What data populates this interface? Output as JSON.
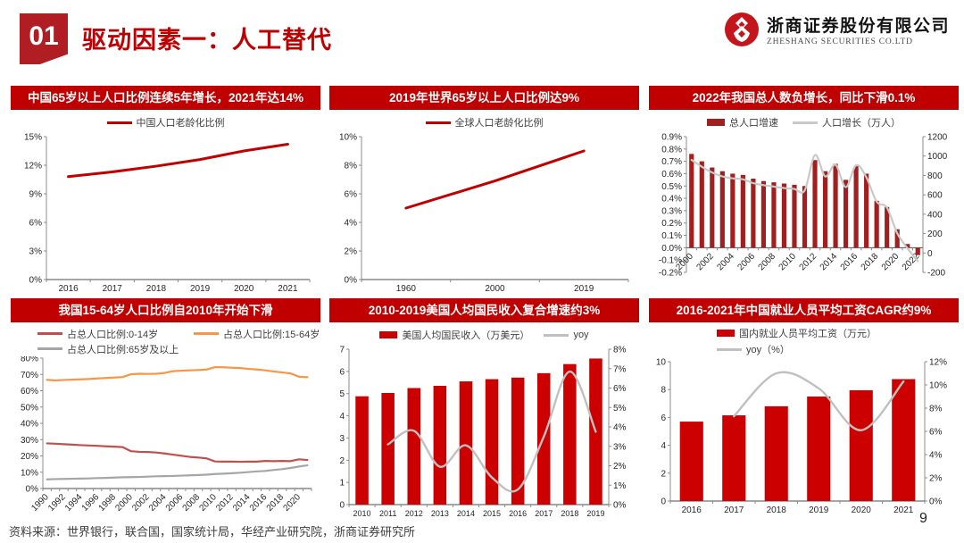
{
  "header": {
    "badge": "01",
    "title": "驱动因素一：人工替代"
  },
  "logo": {
    "cn": "浙商证券股份有限公司",
    "en": "ZHESHANG SECURITIES CO.LTD",
    "icon": "zheshang-knot-icon",
    "brand_color": "#c4151c"
  },
  "footer": {
    "source": "资料来源：世界银行，联合国，国家统计局，华经产业研究院，浙商证券研究所",
    "page": "9"
  },
  "colors": {
    "accent_red": "#c00000",
    "badge_red": "#b01e24",
    "bar_bright_red": "#cc0000",
    "bar_dark_red": "#a21f1f",
    "gray_line": "#c0c0c0",
    "orange_line": "#f79646",
    "muted_red_line": "#c0504d",
    "gray_series": "#a6a6a6"
  },
  "chart_data": [
    {
      "type": "line",
      "title": "中国65岁以上人口比例连续5年增长，2021年达14%",
      "categories": [
        "2016",
        "2017",
        "2018",
        "2019",
        "2020",
        "2021"
      ],
      "series": [
        {
          "name": "中国人口老龄化比例",
          "type": "line",
          "axis": "left",
          "color": "#c00000",
          "values": [
            10.8,
            11.3,
            11.9,
            12.6,
            13.5,
            14.2
          ]
        }
      ],
      "axes": {
        "left": {
          "min": 0,
          "max": 15,
          "step": 3,
          "suffix": "%"
        }
      },
      "legend_position": "top",
      "grid": false
    },
    {
      "type": "line",
      "title": "2019年世界65岁以上人口比例达9%",
      "categories": [
        "1960",
        "2000",
        "2019"
      ],
      "series": [
        {
          "name": "全球人口老龄化比例",
          "type": "line",
          "axis": "left",
          "color": "#c00000",
          "values": [
            5.0,
            6.9,
            9.0
          ]
        }
      ],
      "axes": {
        "left": {
          "min": 0,
          "max": 10,
          "step": 2,
          "suffix": "%"
        }
      },
      "legend_position": "top",
      "grid": false
    },
    {
      "type": "bar-line",
      "title": "2022年我国总人数负增长，同比下滑0.1%",
      "categories": [
        "2000",
        "2001",
        "2002",
        "2003",
        "2004",
        "2005",
        "2006",
        "2007",
        "2008",
        "2009",
        "2010",
        "2011",
        "2012",
        "2013",
        "2014",
        "2015",
        "2016",
        "2017",
        "2018",
        "2019",
        "2020",
        "2021",
        "2022"
      ],
      "series": [
        {
          "name": "总人口增速",
          "type": "bar",
          "axis": "left",
          "color": "#a21f1f",
          "values": [
            0.76,
            0.7,
            0.65,
            0.62,
            0.6,
            0.59,
            0.56,
            0.54,
            0.53,
            0.52,
            0.51,
            0.5,
            0.71,
            0.62,
            0.68,
            0.55,
            0.66,
            0.6,
            0.38,
            0.33,
            0.15,
            0.03,
            -0.06
          ]
        },
        {
          "name": "人口增长（万人）",
          "type": "line",
          "axis": "right",
          "color": "#c9c9c9",
          "smooth": true,
          "values": [
            960,
            890,
            830,
            790,
            770,
            760,
            720,
            700,
            685,
            670,
            660,
            645,
            1010,
            790,
            910,
            680,
            905,
            780,
            530,
            468,
            204,
            48,
            -85
          ]
        }
      ],
      "axes": {
        "left": {
          "min": -0.2,
          "max": 0.9,
          "step": 0.1,
          "suffix": "%",
          "decimals": 1
        },
        "right": {
          "min": -200,
          "max": 1200,
          "step": 200,
          "suffix": ""
        }
      },
      "legend_position": "top",
      "grid": false
    },
    {
      "type": "line",
      "title": "我国15-64岁人口比例自2010年开始下滑",
      "categories": [
        "1990",
        "1991",
        "1992",
        "1993",
        "1994",
        "1995",
        "1996",
        "1997",
        "1998",
        "1999",
        "2000",
        "2001",
        "2002",
        "2003",
        "2004",
        "2005",
        "2006",
        "2007",
        "2008",
        "2009",
        "2010",
        "2011",
        "2012",
        "2013",
        "2014",
        "2015",
        "2016",
        "2017",
        "2018",
        "2019",
        "2020",
        "2021"
      ],
      "series": [
        {
          "name": "占总人口比例:0-14岁",
          "type": "line",
          "axis": "left",
          "color": "#c0504d",
          "values": [
            27.7,
            27.5,
            27.2,
            26.9,
            26.6,
            26.4,
            26.2,
            25.9,
            25.7,
            25.4,
            22.9,
            22.5,
            22.4,
            22.1,
            21.5,
            20.8,
            20.1,
            19.4,
            19.0,
            18.5,
            16.6,
            16.5,
            16.5,
            16.4,
            16.5,
            16.5,
            16.9,
            16.8,
            16.9,
            16.8,
            17.9,
            17.5
          ]
        },
        {
          "name": "占总人口比例:15-64岁",
          "type": "line",
          "axis": "left",
          "color": "#f79646",
          "values": [
            66.7,
            66.3,
            66.6,
            66.8,
            67.0,
            67.2,
            67.5,
            67.8,
            68.1,
            68.4,
            70.1,
            70.4,
            70.3,
            70.4,
            70.9,
            72.0,
            72.3,
            72.5,
            72.7,
            73.0,
            74.5,
            74.4,
            74.1,
            73.9,
            73.4,
            73.0,
            72.5,
            71.8,
            71.2,
            70.6,
            68.6,
            68.3
          ]
        },
        {
          "name": "占总人口比例:65岁及以上",
          "type": "line",
          "axis": "left",
          "color": "#a6a6a6",
          "values": [
            5.6,
            5.8,
            5.9,
            6.0,
            6.1,
            6.2,
            6.4,
            6.5,
            6.7,
            6.9,
            7.0,
            7.1,
            7.3,
            7.5,
            7.6,
            7.7,
            7.9,
            8.1,
            8.3,
            8.5,
            8.9,
            9.1,
            9.4,
            9.7,
            10.1,
            10.5,
            10.8,
            11.4,
            11.9,
            12.6,
            13.5,
            14.2
          ]
        }
      ],
      "axes": {
        "left": {
          "min": 0,
          "max": 80,
          "step": 10,
          "suffix": "%"
        }
      },
      "legend_position": "top",
      "grid": false
    },
    {
      "type": "bar-line",
      "title": "2010-2019美国人均国民收入复合增速约3%",
      "categories": [
        "2010",
        "2011",
        "2012",
        "2013",
        "2014",
        "2015",
        "2016",
        "2017",
        "2018",
        "2019"
      ],
      "series": [
        {
          "name": "美国人均国民收入（万美元）",
          "type": "bar",
          "axis": "left",
          "color": "#cc0000",
          "values": [
            4.88,
            5.03,
            5.25,
            5.35,
            5.55,
            5.65,
            5.72,
            5.92,
            6.33,
            6.58
          ]
        },
        {
          "name": "yoy",
          "type": "line",
          "axis": "right",
          "color": "#c0c0c0",
          "smooth": true,
          "values": [
            null,
            3.1,
            3.8,
            1.95,
            3.05,
            1.4,
            0.78,
            3.5,
            6.85,
            3.75
          ]
        }
      ],
      "axes": {
        "left": {
          "min": 0,
          "max": 7,
          "step": 1,
          "suffix": ""
        },
        "right": {
          "min": 0,
          "max": 8,
          "step": 1,
          "suffix": "%"
        }
      },
      "legend_position": "top",
      "grid": false
    },
    {
      "type": "bar-line",
      "title": "2016-2021年中国就业人员平均工资CAGR约9%",
      "categories": [
        "2016",
        "2017",
        "2018",
        "2019",
        "2020",
        "2021"
      ],
      "series": [
        {
          "name": "国内就业人员平均工资（万元）",
          "type": "bar",
          "axis": "left",
          "color": "#cc0000",
          "values": [
            5.7,
            6.15,
            6.8,
            7.5,
            7.95,
            8.75
          ]
        },
        {
          "name": "yoy（%）",
          "type": "line",
          "axis": "right",
          "color": "#c0c0c0",
          "smooth": true,
          "values": [
            null,
            7.3,
            11.0,
            9.7,
            6.1,
            10.3
          ]
        }
      ],
      "axes": {
        "left": {
          "min": 0,
          "max": 10,
          "step": 2,
          "suffix": ""
        },
        "right": {
          "min": 0,
          "max": 12,
          "step": 2,
          "suffix": "%"
        }
      },
      "legend_position": "top",
      "grid": false
    }
  ]
}
